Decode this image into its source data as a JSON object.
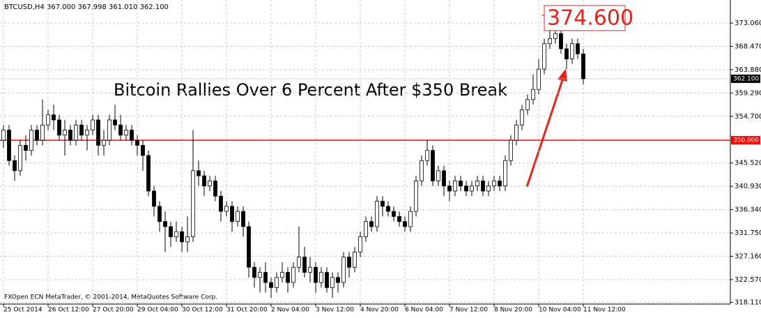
{
  "chart_data": {
    "type": "candlestick",
    "subtitle": "BTCUSD,H4  367.000 367.998 361.010 362.100",
    "title": "Bitcoin Rallies Over 6 Percent After $350 Break",
    "footer": "FXOpen ECN MetaTrader, © 2001-2014, MetaQuotes Software Corp.",
    "peak_label": {
      "value": 374.6,
      "label": "374.600"
    },
    "level_line": {
      "value": 350,
      "label": "350.000",
      "color": "#ff0000"
    },
    "price_line": {
      "value": 362.1,
      "label": "362.100"
    },
    "up_color": "#ffffff",
    "down_color": "#000000",
    "grid": true,
    "ylim": [
      317.76,
      377.6
    ],
    "yticks": [
      {
        "value": 373.06,
        "label": "373.060"
      },
      {
        "value": 368.47,
        "label": "368.470"
      },
      {
        "value": 363.88,
        "label": "363.880"
      },
      {
        "value": 359.29,
        "label": "359.290"
      },
      {
        "value": 354.7,
        "label": "354.700"
      },
      {
        "value": 345.52,
        "label": "345.520"
      },
      {
        "value": 340.93,
        "label": "340.930"
      },
      {
        "value": 336.34,
        "label": "336.340"
      },
      {
        "value": 331.75,
        "label": "331.750"
      },
      {
        "value": 327.16,
        "label": "327.160"
      },
      {
        "value": 322.57,
        "label": "322.570"
      },
      {
        "value": 318.11,
        "label": "318.110"
      }
    ],
    "categories": [
      "25 Oct 2014",
      null,
      null,
      null,
      null,
      null,
      null,
      null,
      "26 Oct 12:00",
      null,
      null,
      null,
      null,
      null,
      null,
      null,
      "27 Oct 20:00",
      null,
      null,
      null,
      null,
      null,
      null,
      null,
      "29 Oct 04:00",
      null,
      null,
      null,
      null,
      null,
      null,
      null,
      "30 Oct 12:00",
      null,
      null,
      null,
      null,
      null,
      null,
      null,
      "31 Oct 20:00",
      null,
      null,
      null,
      null,
      null,
      null,
      null,
      "2 Nov 04:00",
      null,
      null,
      null,
      null,
      null,
      null,
      null,
      "3 Nov 12:00",
      null,
      null,
      null,
      null,
      null,
      null,
      null,
      "4 Nov 20:00",
      null,
      null,
      null,
      null,
      null,
      null,
      null,
      "6 Nov 04:00",
      null,
      null,
      null,
      null,
      null,
      null,
      null,
      "7 Nov 12:00",
      null,
      null,
      null,
      null,
      null,
      null,
      null,
      "8 Nov 20:00",
      null,
      null,
      null,
      null,
      null,
      null,
      null,
      "10 Nov 04:00",
      null,
      null,
      null,
      null,
      null,
      null,
      null,
      "11 Nov 12:00"
    ],
    "open": [
      350,
      352,
      346,
      344,
      349,
      348,
      352,
      350,
      353,
      355,
      354,
      351,
      352,
      350,
      353,
      351,
      352,
      354,
      349,
      350,
      354,
      353,
      351,
      352,
      350,
      349,
      347,
      340,
      337,
      334,
      333,
      331,
      332,
      330,
      331,
      344,
      343,
      341,
      342,
      339,
      336,
      337,
      334,
      336,
      333,
      325,
      323,
      324,
      322,
      321,
      323,
      324,
      322,
      325,
      327,
      324,
      325,
      322,
      324,
      321,
      323,
      322,
      327,
      325,
      328,
      331,
      334,
      333,
      338,
      337,
      336,
      335,
      334,
      333,
      336,
      342,
      346,
      348,
      342,
      344,
      341,
      340,
      342,
      341,
      340,
      341,
      342,
      340,
      341,
      342,
      341,
      346,
      350,
      353,
      356,
      358,
      360,
      364,
      369,
      370,
      371,
      368,
      366,
      369,
      367
    ],
    "high": [
      353,
      353,
      347,
      350,
      351,
      353,
      353,
      358,
      356,
      357,
      355,
      354,
      353,
      354,
      354,
      353,
      355,
      355,
      352,
      355,
      357,
      355,
      353,
      353,
      351,
      350,
      348,
      341,
      338,
      336,
      334,
      334,
      333,
      335,
      352,
      346,
      344,
      343,
      343,
      340,
      338,
      338,
      337,
      337,
      334,
      326,
      325,
      326,
      323,
      324,
      326,
      325,
      326,
      333,
      329,
      327,
      326,
      325,
      325,
      324,
      324,
      328,
      328,
      329,
      332,
      335,
      335,
      339,
      339,
      338,
      337,
      336,
      335,
      337,
      343,
      347,
      350,
      349,
      345,
      345,
      342,
      343,
      343,
      342,
      342,
      343,
      343,
      342,
      343,
      343,
      347,
      351,
      354,
      357,
      359,
      363,
      366,
      370,
      373,
      374.6,
      372,
      369,
      370,
      370,
      367.998
    ],
    "low": [
      348.5,
      345,
      342,
      343,
      346,
      347,
      349,
      349,
      352,
      352,
      350,
      347,
      349,
      349,
      350,
      348,
      351,
      347,
      347,
      349,
      352,
      350,
      350,
      349,
      347,
      344,
      339,
      335,
      332,
      328,
      329,
      330,
      328,
      328,
      330,
      341,
      339,
      340,
      338,
      334,
      335,
      332,
      333,
      331,
      323,
      321,
      320,
      320,
      319,
      320,
      322,
      320,
      321,
      324,
      323,
      322,
      320,
      321,
      320,
      319,
      320,
      321,
      323,
      324,
      327,
      330,
      332,
      332,
      335,
      335,
      334,
      333,
      332,
      332,
      335,
      341,
      345,
      341,
      341,
      339,
      338,
      339,
      340,
      339,
      339,
      340,
      339,
      339,
      340,
      340,
      340,
      345,
      349,
      352,
      355,
      357,
      359,
      363,
      368,
      369,
      367,
      364,
      365,
      366,
      361.01
    ],
    "close": [
      352,
      346,
      344,
      349,
      348,
      352,
      350,
      353,
      355,
      354,
      351,
      352,
      350,
      353,
      351,
      352,
      354,
      349,
      350,
      354,
      353,
      351,
      352,
      350,
      349,
      347,
      340,
      337,
      334,
      333,
      331,
      332,
      330,
      331,
      344,
      343,
      341,
      342,
      339,
      336,
      337,
      334,
      336,
      333,
      325,
      323,
      324,
      322,
      321,
      323,
      324,
      322,
      325,
      327,
      324,
      325,
      322,
      324,
      321,
      323,
      322,
      327,
      325,
      328,
      331,
      334,
      333,
      338,
      337,
      336,
      335,
      334,
      333,
      336,
      342,
      346,
      348,
      342,
      344,
      341,
      340,
      342,
      341,
      340,
      341,
      342,
      340,
      341,
      342,
      341,
      346,
      350,
      353,
      356,
      358,
      360,
      364,
      369,
      370,
      371,
      368,
      366,
      369,
      367,
      362.1
    ]
  }
}
